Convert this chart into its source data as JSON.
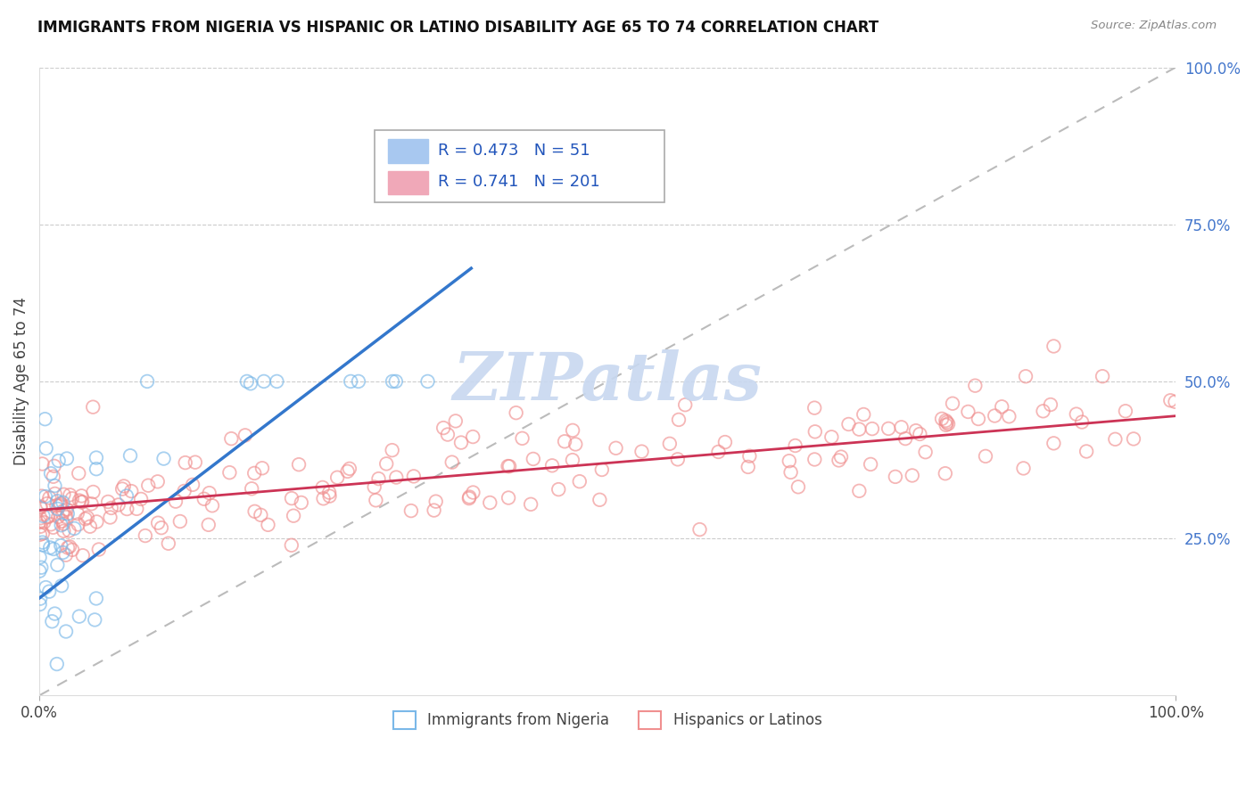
{
  "title": "IMMIGRANTS FROM NIGERIA VS HISPANIC OR LATINO DISABILITY AGE 65 TO 74 CORRELATION CHART",
  "source": "Source: ZipAtlas.com",
  "ylabel": "Disability Age 65 to 74",
  "legend_entries": [
    {
      "label": "Immigrants from Nigeria",
      "color": "#a8c8f0",
      "R": "0.473",
      "N": "51"
    },
    {
      "label": "Hispanics or Latinos",
      "color": "#f0a8b8",
      "R": "0.741",
      "N": "201"
    }
  ],
  "nigeria_scatter_color": "#7ab8e8",
  "hispanic_scatter_color": "#f09090",
  "nigeria_line_color": "#3377cc",
  "hispanic_line_color": "#cc3355",
  "diagonal_line_color": "#bbbbbb",
  "background_color": "#ffffff",
  "watermark_color": "#c8d8f0",
  "ylim": [
    0.0,
    1.0
  ],
  "xlim": [
    0.0,
    1.0
  ],
  "yticks": [
    0.25,
    0.5,
    0.75,
    1.0
  ],
  "ytick_labels": [
    "25.0%",
    "50.0%",
    "75.0%",
    "100.0%"
  ],
  "xtick_labels": [
    "0.0%",
    "100.0%"
  ],
  "nigeria_line_x": [
    0.0,
    0.38
  ],
  "nigeria_line_y": [
    0.155,
    0.68
  ],
  "hispanic_line_x": [
    0.0,
    1.0
  ],
  "hispanic_line_y": [
    0.295,
    0.445
  ]
}
